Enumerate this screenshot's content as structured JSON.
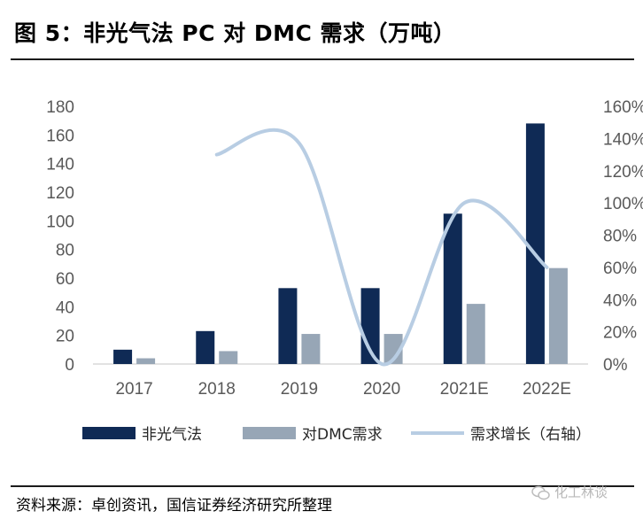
{
  "header": {
    "title": "图 5：非光气法 PC 对 DMC 需求（万吨）"
  },
  "source": "资料来源：卓创资讯，国信证券经济研究所整理",
  "watermark": {
    "text": "化工林谈",
    "icon": "wechat-icon"
  },
  "colors": {
    "bar1": "#0f2a55",
    "bar2": "#97a6b6",
    "line": "#b8cde3",
    "axis": "#d9d9d9"
  },
  "chart_data": {
    "type": "bar",
    "categories": [
      "2017",
      "2018",
      "2019",
      "2020",
      "2021E",
      "2022E"
    ],
    "series": [
      {
        "name": "非光气法",
        "type": "bar",
        "axis": "left",
        "values": [
          10,
          23,
          53,
          53,
          105,
          168
        ]
      },
      {
        "name": "对DMC需求",
        "type": "bar",
        "axis": "left",
        "values": [
          4,
          9,
          21,
          21,
          42,
          67
        ]
      },
      {
        "name": "需求增长（右轴）",
        "type": "line",
        "axis": "right",
        "smooth": true,
        "values": [
          null,
          130,
          137,
          0,
          100,
          60
        ]
      }
    ],
    "y_left": {
      "ylim": [
        0,
        180
      ],
      "ticks": [
        "0",
        "20",
        "40",
        "60",
        "80",
        "100",
        "120",
        "140",
        "160",
        "180"
      ]
    },
    "y_right": {
      "ylim": [
        0,
        160
      ],
      "ticks": [
        "0%",
        "20%",
        "40%",
        "60%",
        "80%",
        "100%",
        "120%",
        "140%",
        "160%"
      ]
    },
    "grid": false,
    "legend": "bottom"
  }
}
